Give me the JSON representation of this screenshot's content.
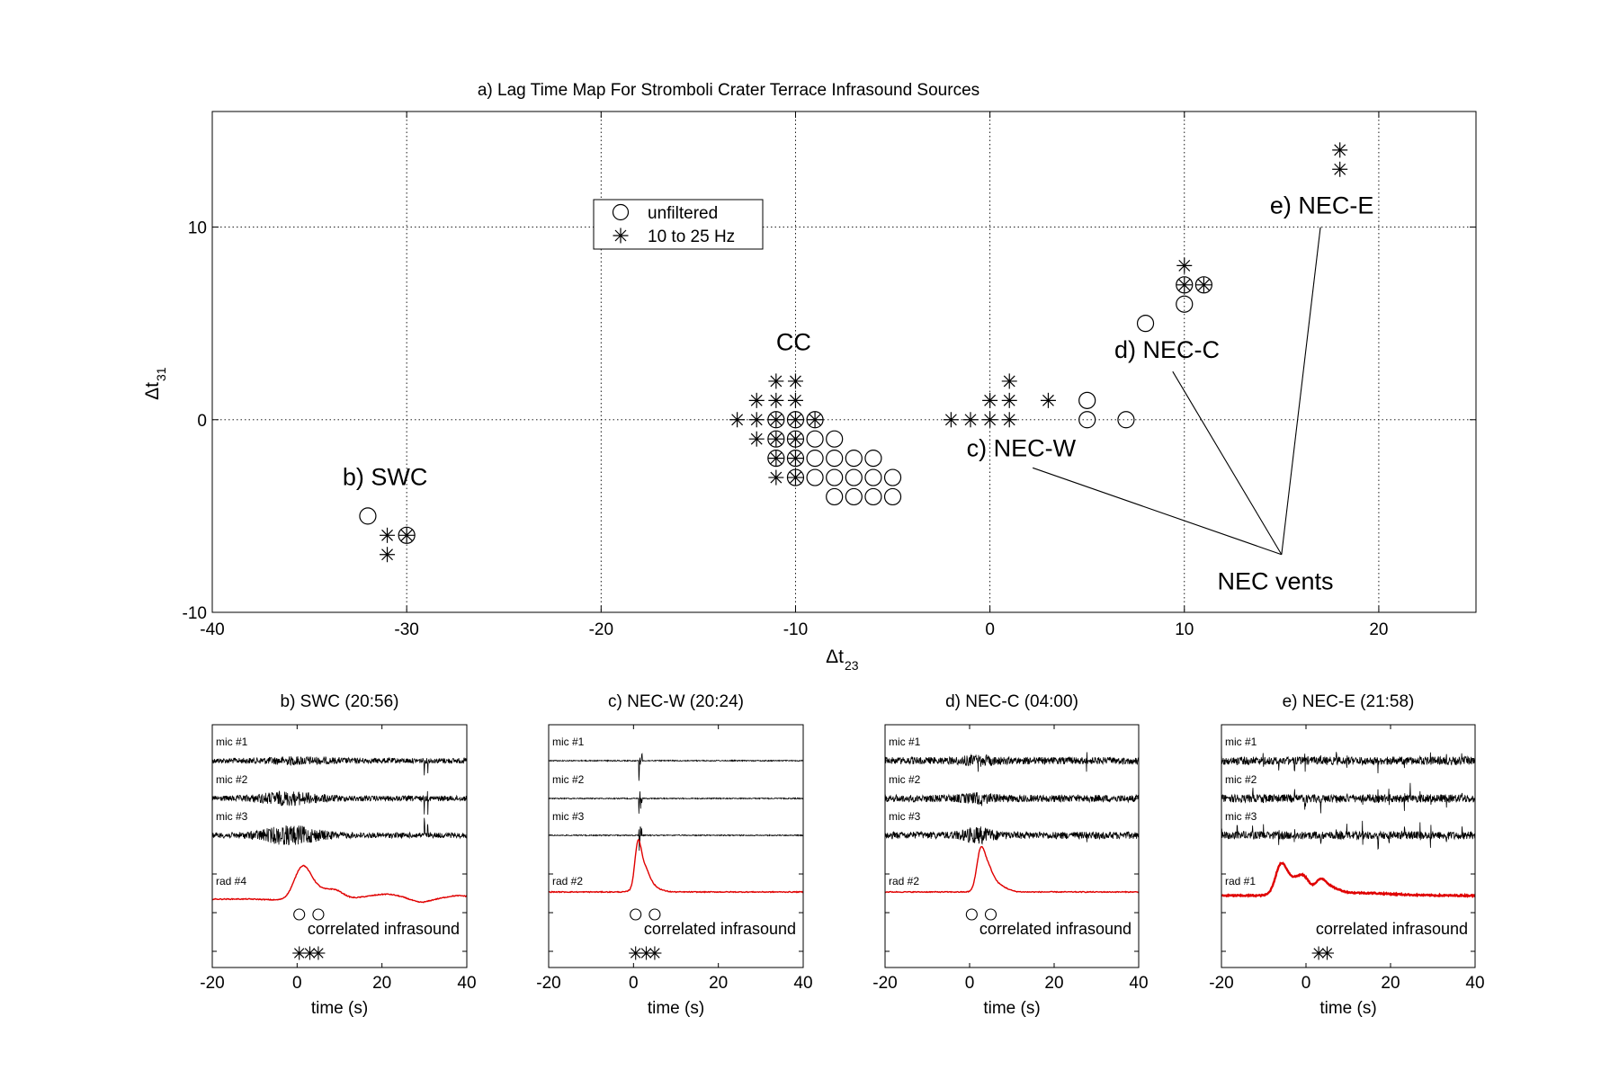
{
  "chart_data": [
    {
      "type": "scatter",
      "title": "a) Lag Time Map For Stromboli Crater Terrace Infrasound Sources",
      "xlabel": "Δt",
      "xlabel_sub": "23",
      "ylabel": "Δt",
      "ylabel_sub": "31",
      "xlim": [
        -40,
        25
      ],
      "ylim": [
        -10,
        16
      ],
      "xticks": [
        -40,
        -30,
        -20,
        -10,
        0,
        10,
        20
      ],
      "yticks": [
        -10,
        0,
        10
      ],
      "grid": true,
      "legend": "upper-left",
      "series": [
        {
          "name": "unfiltered",
          "marker": "circle",
          "points": [
            [
              -32,
              -5
            ],
            [
              -30,
              -6
            ],
            [
              -11,
              0
            ],
            [
              -10,
              0
            ],
            [
              -9,
              0
            ],
            [
              -11,
              -1
            ],
            [
              -10,
              -1
            ],
            [
              -9,
              -1
            ],
            [
              -8,
              -1
            ],
            [
              -11,
              -2
            ],
            [
              -10,
              -2
            ],
            [
              -9,
              -2
            ],
            [
              -8,
              -2
            ],
            [
              -7,
              -2
            ],
            [
              -6,
              -2
            ],
            [
              -10,
              -3
            ],
            [
              -9,
              -3
            ],
            [
              -8,
              -3
            ],
            [
              -7,
              -3
            ],
            [
              -6,
              -3
            ],
            [
              -5,
              -3
            ],
            [
              -8,
              -4
            ],
            [
              -7,
              -4
            ],
            [
              -6,
              -4
            ],
            [
              -5,
              -4
            ],
            [
              5,
              1
            ],
            [
              5,
              0
            ],
            [
              7,
              0
            ],
            [
              8,
              5
            ],
            [
              10,
              6
            ],
            [
              10,
              7
            ],
            [
              11,
              7
            ]
          ]
        },
        {
          "name": "10 to 25 Hz",
          "marker": "asterisk",
          "points": [
            [
              -31,
              -6
            ],
            [
              -30,
              -6
            ],
            [
              -31,
              -7
            ],
            [
              -11,
              2
            ],
            [
              -10,
              2
            ],
            [
              -12,
              1
            ],
            [
              -11,
              1
            ],
            [
              -10,
              1
            ],
            [
              -13,
              0
            ],
            [
              -12,
              0
            ],
            [
              -11,
              0
            ],
            [
              -10,
              0
            ],
            [
              -9,
              0
            ],
            [
              -12,
              -1
            ],
            [
              -11,
              -1
            ],
            [
              -10,
              -1
            ],
            [
              -11,
              -2
            ],
            [
              -10,
              -2
            ],
            [
              -11,
              -3
            ],
            [
              -10,
              -3
            ],
            [
              1,
              2
            ],
            [
              0,
              1
            ],
            [
              1,
              1
            ],
            [
              3,
              1
            ],
            [
              -2,
              0
            ],
            [
              -1,
              0
            ],
            [
              0,
              0
            ],
            [
              1,
              0
            ],
            [
              10,
              8
            ],
            [
              10,
              7
            ],
            [
              11,
              7
            ],
            [
              18,
              14
            ],
            [
              18,
              13
            ]
          ]
        }
      ],
      "annotations": [
        {
          "text": "b) SWC",
          "x": -33.3,
          "y": -3.4
        },
        {
          "text": "CC",
          "x": -11,
          "y": 3.6
        },
        {
          "text": "c) NEC-W",
          "x": -1.2,
          "y": -1.9
        },
        {
          "text": "d) NEC-C",
          "x": 6.4,
          "y": 3.2
        },
        {
          "text": "e) NEC-E",
          "x": 14.4,
          "y": 10.7
        },
        {
          "text": "NEC vents",
          "x": 11.7,
          "y": -8.8
        }
      ],
      "leader_lines": [
        {
          "from": [
            15,
            -7
          ],
          "to": [
            2.2,
            -2.5
          ]
        },
        {
          "from": [
            15,
            -7
          ],
          "to": [
            9.4,
            2.5
          ]
        },
        {
          "from": [
            15,
            -7
          ],
          "to": [
            17,
            10
          ]
        }
      ]
    },
    {
      "type": "line",
      "title": "b) SWC (20:56)",
      "xlabel": "time (s)",
      "xlim": [
        -20,
        40
      ],
      "xticks": [
        -20,
        0,
        20,
        40
      ],
      "traces": [
        "mic #1",
        "mic #2",
        "mic #3",
        "rad #4"
      ],
      "caption": "correlated infrasound",
      "circle_lags": [
        0.5,
        5
      ],
      "asterisk_lags": [
        0.5,
        3,
        5
      ]
    },
    {
      "type": "line",
      "title": "c) NEC-W (20:24)",
      "xlabel": "time (s)",
      "xlim": [
        -20,
        40
      ],
      "xticks": [
        -20,
        0,
        20,
        40
      ],
      "traces": [
        "mic #1",
        "mic #2",
        "mic #3",
        "rad #2"
      ],
      "caption": "correlated infrasound",
      "circle_lags": [
        0.5,
        5
      ],
      "asterisk_lags": [
        0.5,
        3,
        5
      ]
    },
    {
      "type": "line",
      "title": "d) NEC-C (04:00)",
      "xlabel": "time (s)",
      "xlim": [
        -20,
        40
      ],
      "xticks": [
        -20,
        0,
        20,
        40
      ],
      "traces": [
        "mic #1",
        "mic #2",
        "mic #3",
        "rad #2"
      ],
      "caption": "correlated infrasound",
      "circle_lags": [
        0.5,
        5
      ]
    },
    {
      "type": "line",
      "title": "e) NEC-E (21:58)",
      "xlabel": "time (s)",
      "xlim": [
        -20,
        40
      ],
      "xticks": [
        -20,
        0,
        20,
        40
      ],
      "traces": [
        "mic #1",
        "mic #2",
        "mic #3",
        "rad #1"
      ],
      "caption": "correlated infrasound",
      "asterisk_lags": [
        3,
        5
      ]
    }
  ],
  "colors": {
    "axes": "#000000",
    "grid": "#000000",
    "waveform": "#000000",
    "radiometer": "#e00000"
  }
}
